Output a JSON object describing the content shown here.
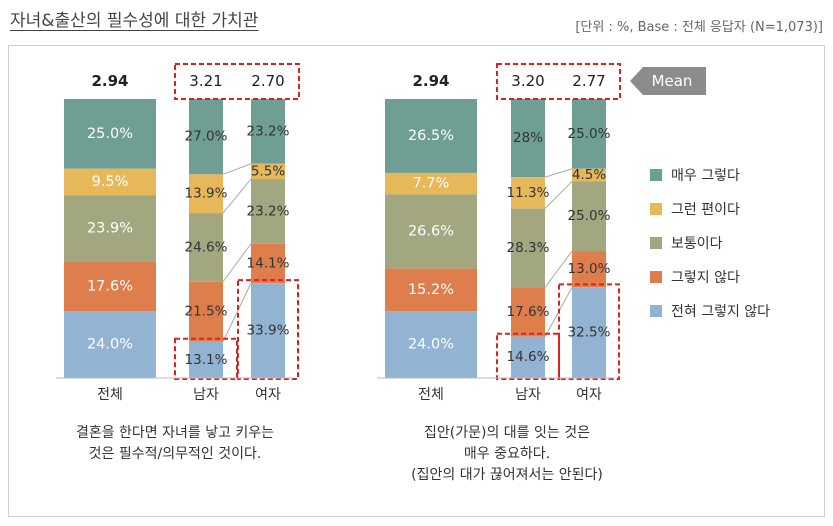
{
  "title": "자녀&출산의 필수성에 대한 가치관",
  "unit_note": "[단위 : %, Base : 전체 응답자 (N=1,073)]",
  "mean_label": "Mean",
  "legend": [
    {
      "name": "매우 그렇다",
      "color": "#6f9f94"
    },
    {
      "name": "그런 편이다",
      "color": "#e6b85a"
    },
    {
      "name": "보통이다",
      "color": "#a3a77f"
    },
    {
      "name": "그렇지 않다",
      "color": "#de7e4c"
    },
    {
      "name": "전혀 그렇지 않다",
      "color": "#93b3d3"
    }
  ],
  "chart_data": [
    {
      "type": "bar",
      "stacked": true,
      "title": "",
      "note": [
        "결혼을 한다면 자녀를 낳고 키우는",
        "것은 필수적/의무적인 것이다."
      ],
      "categories": [
        "전체",
        "남자",
        "여자"
      ],
      "means": [
        "2.94",
        "3.21",
        "2.70"
      ],
      "series": [
        {
          "name": "매우 그렇다",
          "values": [
            25.0,
            27.0,
            23.2
          ],
          "labels": [
            "25.0%",
            "27.0%",
            "23.2%"
          ]
        },
        {
          "name": "그런 편이다",
          "values": [
            9.5,
            13.9,
            5.5
          ],
          "labels": [
            "9.5%",
            "13.9%",
            "5.5%"
          ]
        },
        {
          "name": "보통이다",
          "values": [
            23.9,
            24.6,
            23.2
          ],
          "labels": [
            "23.9%",
            "24.6%",
            "23.2%"
          ]
        },
        {
          "name": "그렇지 않다",
          "values": [
            17.6,
            21.5,
            14.1
          ],
          "labels": [
            "17.6%",
            "21.5%",
            "14.1%"
          ]
        },
        {
          "name": "전혀 그렇지 않다",
          "values": [
            24.0,
            13.1,
            33.9
          ],
          "labels": [
            "24.0%",
            "13.1%",
            "33.9%"
          ]
        }
      ]
    },
    {
      "type": "bar",
      "stacked": true,
      "title": "",
      "note": [
        "집안(가문)의 대를 잇는 것은",
        "매우 중요하다.",
        "(집안의 대가 끊어져서는 안된다)"
      ],
      "categories": [
        "전체",
        "남자",
        "여자"
      ],
      "means": [
        "2.94",
        "3.20",
        "2.77"
      ],
      "series": [
        {
          "name": "매우 그렇다",
          "values": [
            26.5,
            28,
            25.0
          ],
          "labels": [
            "26.5%",
            "28%",
            "25.0%"
          ]
        },
        {
          "name": "그런 편이다",
          "values": [
            7.7,
            11.3,
            4.5
          ],
          "labels": [
            "7.7%",
            "11.3%",
            "4.5%"
          ]
        },
        {
          "name": "보통이다",
          "values": [
            26.6,
            28.3,
            25.0
          ],
          "labels": [
            "26.6%",
            "28.3%",
            "25.0%"
          ]
        },
        {
          "name": "그렇지 않다",
          "values": [
            15.2,
            17.6,
            13.0
          ],
          "labels": [
            "15.2%",
            "17.6%",
            "13.0%"
          ]
        },
        {
          "name": "전혀 그렇지 않다",
          "values": [
            24.0,
            14.6,
            32.5
          ],
          "labels": [
            "24.0%",
            "14.6%",
            "32.5%"
          ]
        }
      ]
    }
  ]
}
